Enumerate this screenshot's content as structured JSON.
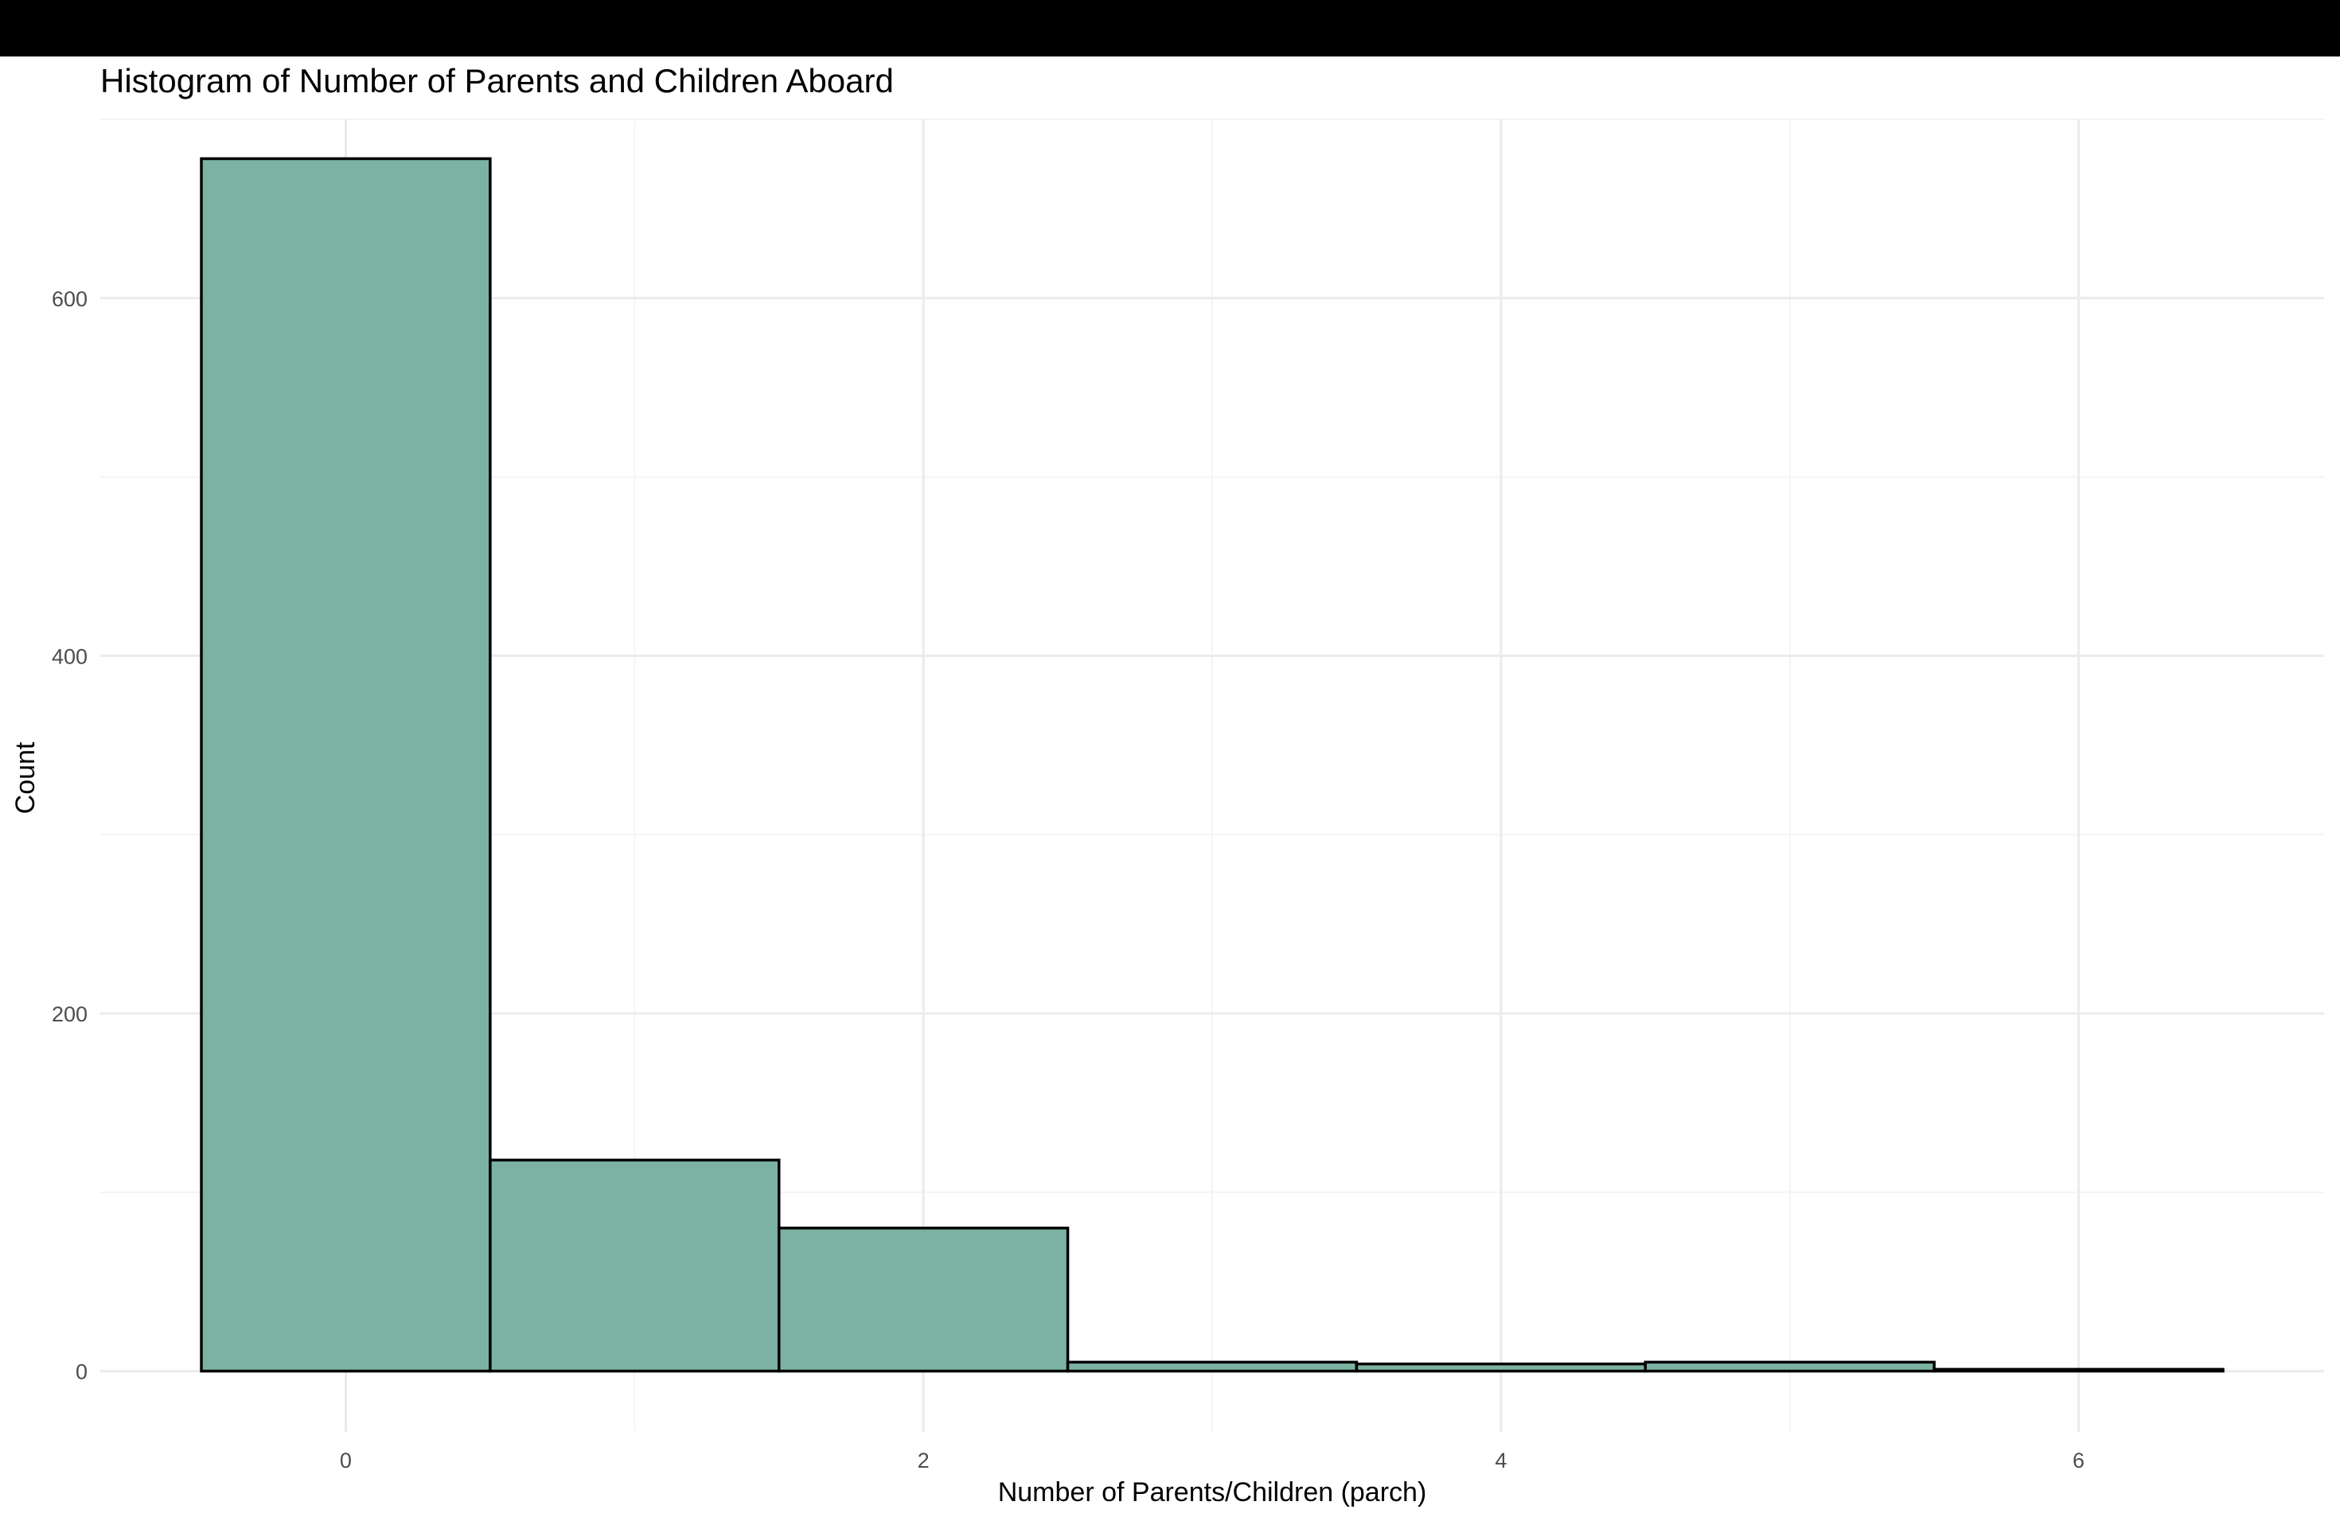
{
  "chart_data": {
    "type": "bar",
    "title": "Histogram of Number of Parents and Children Aboard",
    "xlabel": "Number of Parents/Children (parch)",
    "ylabel": "Count",
    "bins": [
      {
        "x": 0,
        "count": 678
      },
      {
        "x": 1,
        "count": 118
      },
      {
        "x": 2,
        "count": 80
      },
      {
        "x": 3,
        "count": 5
      },
      {
        "x": 4,
        "count": 4
      },
      {
        "x": 5,
        "count": 5
      },
      {
        "x": 6,
        "count": 1
      }
    ],
    "xlim": [
      -0.85,
      6.85
    ],
    "ylim": [
      -34,
      700
    ],
    "xticks": [
      "0",
      "2",
      "4",
      "6"
    ],
    "yticks": [
      "0",
      "200",
      "400",
      "600"
    ],
    "grid": true,
    "colors": {
      "fill": "#7cb2a3",
      "stroke": "#000000",
      "grid_major": "#ebebeb",
      "grid_minor": "#f4f4f4",
      "tick_text": "#4d4d4d",
      "top_bar": "#000000"
    }
  }
}
